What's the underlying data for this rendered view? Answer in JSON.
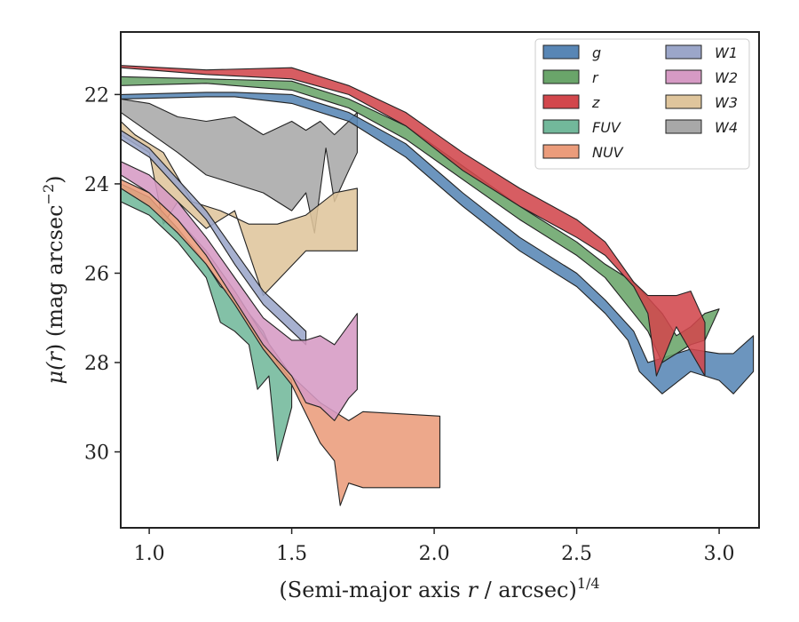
{
  "chart_data": {
    "type": "area",
    "xlabel_main": "(Semi-major axis ",
    "xlabel_var": "r",
    "xlabel_tail": " / arcsec)",
    "xlabel_sup": "1/4",
    "ylabel_main": "μ(",
    "ylabel_var": "r",
    "ylabel_tail": ") (mag arcsec",
    "ylabel_sup": "−2",
    "ylabel_end": ")",
    "xlim": [
      0.9,
      3.14
    ],
    "ylim": [
      31.7,
      20.6
    ],
    "y_inverted": true,
    "xticks": [
      1.0,
      1.5,
      2.0,
      2.5,
      3.0
    ],
    "xtick_labels": [
      "1.0",
      "1.5",
      "2.0",
      "2.5",
      "3.0"
    ],
    "yticks": [
      22,
      24,
      26,
      28,
      30
    ],
    "ytick_labels": [
      "22",
      "24",
      "26",
      "28",
      "30"
    ],
    "grid": false,
    "legend_position": "top-right",
    "legend_columns": 2,
    "series": [
      {
        "name": "W4",
        "color": "#a8a8a8",
        "lower": [
          [
            0.9,
            22.4
          ],
          [
            1.1,
            23.3
          ],
          [
            1.2,
            23.8
          ],
          [
            1.3,
            24.0
          ],
          [
            1.4,
            24.2
          ],
          [
            1.5,
            24.6
          ],
          [
            1.55,
            24.2
          ],
          [
            1.58,
            25.1
          ],
          [
            1.62,
            23.2
          ],
          [
            1.65,
            24.4
          ],
          [
            1.7,
            23.7
          ],
          [
            1.73,
            23.3
          ]
        ],
        "upper": [
          [
            1.73,
            22.4
          ],
          [
            1.7,
            22.6
          ],
          [
            1.65,
            22.9
          ],
          [
            1.6,
            22.6
          ],
          [
            1.55,
            22.8
          ],
          [
            1.5,
            22.6
          ],
          [
            1.4,
            22.9
          ],
          [
            1.3,
            22.5
          ],
          [
            1.2,
            22.6
          ],
          [
            1.1,
            22.5
          ],
          [
            1.0,
            22.2
          ],
          [
            0.9,
            22.1
          ]
        ]
      },
      {
        "name": "W3",
        "color": "#dfc59c",
        "lower": [
          [
            0.9,
            22.9
          ],
          [
            1.0,
            23.3
          ],
          [
            1.05,
            24.9
          ],
          [
            1.1,
            24.4
          ],
          [
            1.2,
            25.0
          ],
          [
            1.3,
            24.6
          ],
          [
            1.4,
            26.5
          ],
          [
            1.55,
            25.5
          ],
          [
            1.65,
            25.5
          ],
          [
            1.73,
            25.5
          ]
        ],
        "upper": [
          [
            1.73,
            24.1
          ],
          [
            1.65,
            24.2
          ],
          [
            1.55,
            24.7
          ],
          [
            1.45,
            24.9
          ],
          [
            1.35,
            24.9
          ],
          [
            1.25,
            24.6
          ],
          [
            1.15,
            24.4
          ],
          [
            1.05,
            23.3
          ],
          [
            0.95,
            22.9
          ],
          [
            0.9,
            22.6
          ]
        ]
      },
      {
        "name": "W1",
        "color": "#9ba6c9",
        "lower": [
          [
            0.9,
            23.0
          ],
          [
            1.0,
            23.4
          ],
          [
            1.1,
            24.1
          ],
          [
            1.2,
            24.8
          ],
          [
            1.3,
            25.8
          ],
          [
            1.4,
            26.7
          ],
          [
            1.5,
            27.3
          ],
          [
            1.55,
            27.6
          ]
        ],
        "upper": [
          [
            1.55,
            27.3
          ],
          [
            1.5,
            27.0
          ],
          [
            1.4,
            26.4
          ],
          [
            1.3,
            25.5
          ],
          [
            1.2,
            24.6
          ],
          [
            1.1,
            23.9
          ],
          [
            1.0,
            23.2
          ],
          [
            0.9,
            22.8
          ]
        ]
      },
      {
        "name": "FUV",
        "color": "#72b89b",
        "lower": [
          [
            0.9,
            24.4
          ],
          [
            1.0,
            24.7
          ],
          [
            1.1,
            25.3
          ],
          [
            1.2,
            26.1
          ],
          [
            1.25,
            27.1
          ],
          [
            1.3,
            27.3
          ],
          [
            1.35,
            27.6
          ],
          [
            1.38,
            28.6
          ],
          [
            1.42,
            28.3
          ],
          [
            1.45,
            30.2
          ],
          [
            1.5,
            29.0
          ]
        ],
        "upper": [
          [
            1.5,
            28.4
          ],
          [
            1.45,
            28.0
          ],
          [
            1.4,
            27.3
          ],
          [
            1.35,
            26.9
          ],
          [
            1.3,
            26.5
          ],
          [
            1.25,
            26.3
          ],
          [
            1.2,
            25.8
          ],
          [
            1.1,
            25.0
          ],
          [
            1.0,
            24.3
          ],
          [
            0.9,
            24.0
          ]
        ]
      },
      {
        "name": "NUV",
        "color": "#eb9c7b",
        "lower": [
          [
            0.9,
            24.1
          ],
          [
            1.0,
            24.5
          ],
          [
            1.1,
            25.1
          ],
          [
            1.2,
            25.8
          ],
          [
            1.3,
            26.7
          ],
          [
            1.4,
            27.7
          ],
          [
            1.5,
            28.5
          ],
          [
            1.6,
            29.8
          ],
          [
            1.65,
            30.2
          ],
          [
            1.67,
            31.2
          ],
          [
            1.7,
            30.7
          ],
          [
            1.75,
            30.8
          ],
          [
            2.02,
            30.8
          ]
        ],
        "upper": [
          [
            2.02,
            29.2
          ],
          [
            1.75,
            29.1
          ],
          [
            1.7,
            29.3
          ],
          [
            1.6,
            28.9
          ],
          [
            1.5,
            28.3
          ],
          [
            1.4,
            27.4
          ],
          [
            1.3,
            26.4
          ],
          [
            1.2,
            25.5
          ],
          [
            1.1,
            24.8
          ],
          [
            1.0,
            24.2
          ],
          [
            0.9,
            23.9
          ]
        ]
      },
      {
        "name": "W2",
        "color": "#d69ac4",
        "lower": [
          [
            0.9,
            23.8
          ],
          [
            1.0,
            24.2
          ],
          [
            1.1,
            24.8
          ],
          [
            1.2,
            25.6
          ],
          [
            1.3,
            26.6
          ],
          [
            1.4,
            27.6
          ],
          [
            1.5,
            28.3
          ],
          [
            1.55,
            28.9
          ],
          [
            1.6,
            29.0
          ],
          [
            1.65,
            29.3
          ],
          [
            1.7,
            28.8
          ],
          [
            1.73,
            28.6
          ]
        ],
        "upper": [
          [
            1.73,
            26.9
          ],
          [
            1.65,
            27.6
          ],
          [
            1.6,
            27.4
          ],
          [
            1.55,
            27.5
          ],
          [
            1.5,
            27.5
          ],
          [
            1.4,
            27.0
          ],
          [
            1.3,
            26.1
          ],
          [
            1.2,
            25.2
          ],
          [
            1.1,
            24.4
          ],
          [
            1.0,
            23.8
          ],
          [
            0.9,
            23.5
          ]
        ]
      },
      {
        "name": "g",
        "color": "#5886b5",
        "lower": [
          [
            0.9,
            22.1
          ],
          [
            1.2,
            22.05
          ],
          [
            1.3,
            22.05
          ],
          [
            1.5,
            22.2
          ],
          [
            1.7,
            22.6
          ],
          [
            1.9,
            23.4
          ],
          [
            2.1,
            24.5
          ],
          [
            2.3,
            25.5
          ],
          [
            2.5,
            26.3
          ],
          [
            2.6,
            26.9
          ],
          [
            2.68,
            27.5
          ],
          [
            2.72,
            28.2
          ],
          [
            2.8,
            28.7
          ],
          [
            2.9,
            28.2
          ],
          [
            3.0,
            28.4
          ],
          [
            3.05,
            28.7
          ],
          [
            3.12,
            28.2
          ]
        ],
        "upper": [
          [
            3.12,
            27.4
          ],
          [
            3.05,
            27.8
          ],
          [
            3.0,
            27.8
          ],
          [
            2.9,
            27.7
          ],
          [
            2.8,
            27.9
          ],
          [
            2.75,
            28.0
          ],
          [
            2.7,
            27.3
          ],
          [
            2.6,
            26.6
          ],
          [
            2.5,
            26.0
          ],
          [
            2.3,
            25.2
          ],
          [
            2.1,
            24.2
          ],
          [
            1.9,
            23.1
          ],
          [
            1.7,
            22.4
          ],
          [
            1.5,
            22.0
          ],
          [
            1.3,
            21.95
          ],
          [
            1.2,
            21.95
          ],
          [
            0.9,
            22.0
          ]
        ]
      },
      {
        "name": "r",
        "color": "#6aa56a",
        "lower": [
          [
            0.9,
            21.8
          ],
          [
            1.2,
            21.75
          ],
          [
            1.5,
            21.9
          ],
          [
            1.7,
            22.3
          ],
          [
            1.9,
            23.0
          ],
          [
            2.1,
            23.9
          ],
          [
            2.3,
            24.8
          ],
          [
            2.5,
            25.6
          ],
          [
            2.6,
            26.1
          ],
          [
            2.7,
            26.9
          ],
          [
            2.75,
            27.3
          ],
          [
            2.8,
            28.0
          ],
          [
            2.9,
            27.6
          ],
          [
            2.95,
            27.5
          ]
        ],
        "upper": [
          [
            3.0,
            26.8
          ],
          [
            2.95,
            26.9
          ],
          [
            2.9,
            27.2
          ],
          [
            2.85,
            27.4
          ],
          [
            2.8,
            26.9
          ],
          [
            2.7,
            26.2
          ],
          [
            2.6,
            25.8
          ],
          [
            2.5,
            25.3
          ],
          [
            2.3,
            24.5
          ],
          [
            2.1,
            23.6
          ],
          [
            1.9,
            22.7
          ],
          [
            1.7,
            22.1
          ],
          [
            1.5,
            21.7
          ],
          [
            1.2,
            21.65
          ],
          [
            0.9,
            21.6
          ]
        ]
      },
      {
        "name": "z",
        "color": "#d2474c",
        "lower": [
          [
            0.9,
            21.4
          ],
          [
            1.2,
            21.55
          ],
          [
            1.5,
            21.65
          ],
          [
            1.7,
            22.0
          ],
          [
            1.9,
            22.7
          ],
          [
            2.1,
            23.7
          ],
          [
            2.3,
            24.5
          ],
          [
            2.5,
            25.2
          ],
          [
            2.6,
            25.6
          ],
          [
            2.7,
            26.3
          ],
          [
            2.75,
            26.9
          ],
          [
            2.78,
            28.3
          ],
          [
            2.85,
            27.2
          ],
          [
            2.95,
            28.3
          ]
        ],
        "upper": [
          [
            2.95,
            27.1
          ],
          [
            2.9,
            26.4
          ],
          [
            2.85,
            26.5
          ],
          [
            2.8,
            26.5
          ],
          [
            2.75,
            26.5
          ],
          [
            2.7,
            26.2
          ],
          [
            2.6,
            25.3
          ],
          [
            2.5,
            24.8
          ],
          [
            2.3,
            24.1
          ],
          [
            2.1,
            23.3
          ],
          [
            1.9,
            22.4
          ],
          [
            1.7,
            21.8
          ],
          [
            1.5,
            21.4
          ],
          [
            1.2,
            21.45
          ],
          [
            0.9,
            21.35
          ]
        ]
      }
    ],
    "legend": [
      {
        "label": "g",
        "color": "#5886b5"
      },
      {
        "label": "r",
        "color": "#6aa56a"
      },
      {
        "label": "z",
        "color": "#d2474c"
      },
      {
        "label": "FUV",
        "color": "#72b89b"
      },
      {
        "label": "NUV",
        "color": "#eb9c7b"
      },
      {
        "label": "W1",
        "color": "#9ba6c9"
      },
      {
        "label": "W2",
        "color": "#d69ac4"
      },
      {
        "label": "W3",
        "color": "#dfc59c"
      },
      {
        "label": "W4",
        "color": "#a8a8a8"
      }
    ]
  }
}
